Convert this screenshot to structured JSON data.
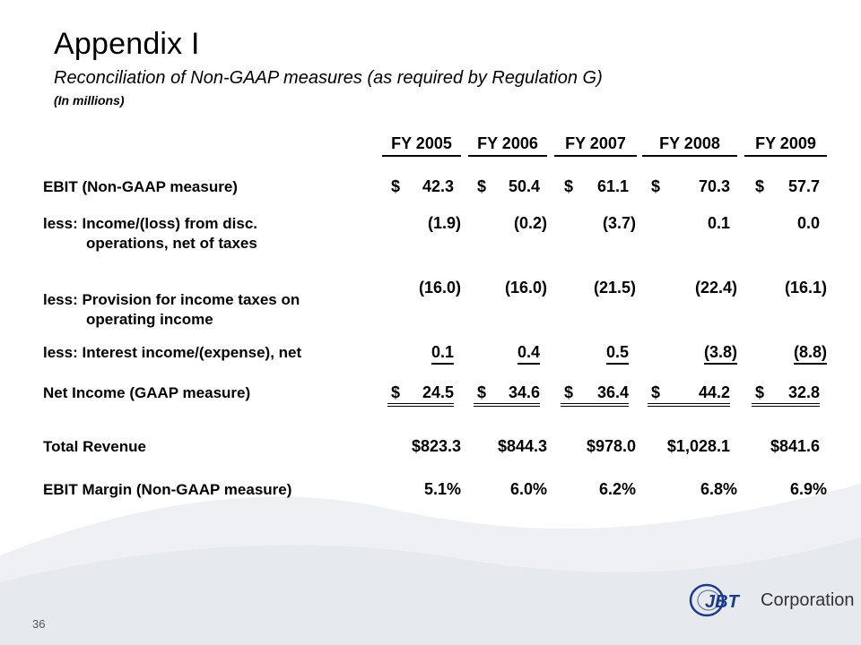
{
  "slide": {
    "title": "Appendix I",
    "subtitle": "Reconciliation of Non-GAAP measures (as required by Regulation G)",
    "unit_note": "(In millions)",
    "page_number": "36"
  },
  "table": {
    "headers": [
      "FY 2005",
      "FY 2006",
      "FY 2007",
      "FY 2008",
      "FY 2009"
    ],
    "rows": {
      "ebit": {
        "label": "EBIT (Non-GAAP measure)",
        "values": [
          "42.3",
          "50.4",
          "61.1",
          "70.3",
          "57.7"
        ],
        "currency": "$"
      },
      "disc_ops": {
        "label": "less: Income/(loss) from disc.",
        "label_cont": "operations, net of taxes",
        "values": [
          "(1.9)",
          "(0.2)",
          "(3.7)",
          "0.1",
          "0.0"
        ]
      },
      "taxes": {
        "label": "less: Provision for income taxes on",
        "label_cont": "operating income",
        "values": [
          "(16.0)",
          "(16.0)",
          "(21.5)",
          "(22.4)",
          "(16.1)"
        ]
      },
      "interest": {
        "label": "less: Interest income/(expense), net",
        "values": [
          "0.1",
          "0.4",
          "0.5",
          "(3.8)",
          "(8.8)"
        ]
      },
      "net_income": {
        "label": "Net Income (GAAP measure)",
        "values": [
          "24.5",
          "34.6",
          "36.4",
          "44.2",
          "32.8"
        ],
        "currency": "$"
      },
      "revenue": {
        "label": "Total Revenue",
        "values": [
          "$823.3",
          "$844.3",
          "$978.0",
          "$1,028.1",
          "$841.6"
        ]
      },
      "margin": {
        "label": "EBIT Margin (Non-GAAP measure)",
        "values": [
          "5.1%",
          "6.0%",
          "6.2%",
          "6.8%",
          "6.9%"
        ]
      }
    }
  },
  "logo": {
    "mark": "JBT",
    "word": "Corporation",
    "accent_color": "#1a3a8a"
  },
  "colors": {
    "wave": "#eef0f3"
  }
}
